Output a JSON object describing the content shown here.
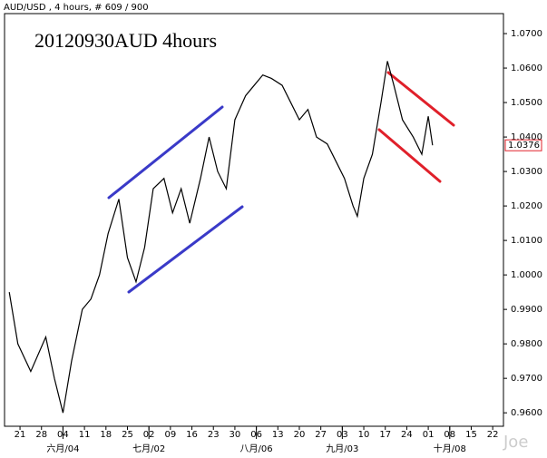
{
  "chart_data": {
    "type": "line",
    "header": "AUD/USD , 4 hours, # 609 / 900",
    "title": "20120930AUD 4hours",
    "watermark": "Joe",
    "color": "#000000",
    "x": [
      -0.5,
      -0.1,
      0.5,
      1.2,
      1.6,
      2.0,
      2.4,
      2.9,
      3.3,
      3.7,
      4.1,
      4.6,
      5.0,
      5.4,
      5.8,
      6.2,
      6.7,
      7.1,
      7.5,
      7.9,
      8.4,
      8.8,
      9.2,
      9.6,
      10.0,
      10.5,
      10.9,
      11.3,
      11.7,
      12.2,
      12.6,
      13.0,
      13.4,
      13.8,
      14.3,
      14.7,
      15.1,
      15.5,
      15.7,
      16.0,
      16.4,
      16.8,
      17.1,
      17.4,
      17.8,
      18.3,
      18.7,
      19.0,
      19.2
    ],
    "values": [
      0.995,
      0.98,
      0.972,
      0.982,
      0.97,
      0.96,
      0.975,
      0.99,
      0.993,
      1.0,
      1.012,
      1.022,
      1.005,
      0.998,
      1.008,
      1.025,
      1.028,
      1.018,
      1.025,
      1.015,
      1.028,
      1.04,
      1.03,
      1.025,
      1.045,
      1.052,
      1.055,
      1.058,
      1.057,
      1.055,
      1.05,
      1.045,
      1.048,
      1.04,
      1.038,
      1.033,
      1.028,
      1.02,
      1.017,
      1.028,
      1.035,
      1.05,
      1.062,
      1.055,
      1.045,
      1.04,
      1.035,
      1.046,
      1.0376
    ],
    "last_price": 1.0376,
    "xlim": [
      -0.72,
      22.5
    ],
    "ylim": [
      0.9561,
      1.0758
    ],
    "yticks": [
      {
        "value": 0.96,
        "label": "0.9600"
      },
      {
        "value": 0.97,
        "label": "0.9700"
      },
      {
        "value": 0.98,
        "label": "0.9800"
      },
      {
        "value": 0.99,
        "label": "0.9900"
      },
      {
        "value": 1.0,
        "label": "1.0000"
      },
      {
        "value": 1.01,
        "label": "1.0100"
      },
      {
        "value": 1.02,
        "label": "1.0200"
      },
      {
        "value": 1.03,
        "label": "1.0300"
      },
      {
        "value": 1.04,
        "label": "1.0400"
      },
      {
        "value": 1.05,
        "label": "1.0500"
      },
      {
        "value": 1.06,
        "label": "1.0600"
      },
      {
        "value": 1.07,
        "label": "1.0700"
      }
    ],
    "xticks": [
      {
        "value": 0,
        "label": "21"
      },
      {
        "value": 1,
        "label": "28"
      },
      {
        "value": 2,
        "label": "04"
      },
      {
        "value": 3,
        "label": "11"
      },
      {
        "value": 4,
        "label": "18"
      },
      {
        "value": 5,
        "label": "25"
      },
      {
        "value": 6,
        "label": "02"
      },
      {
        "value": 7,
        "label": "09"
      },
      {
        "value": 8,
        "label": "16"
      },
      {
        "value": 9,
        "label": "23"
      },
      {
        "value": 10,
        "label": "30"
      },
      {
        "value": 11,
        "label": "06"
      },
      {
        "value": 12,
        "label": "13"
      },
      {
        "value": 13,
        "label": "20"
      },
      {
        "value": 14,
        "label": "27"
      },
      {
        "value": 15,
        "label": "03"
      },
      {
        "value": 16,
        "label": "10"
      },
      {
        "value": 17,
        "label": "17"
      },
      {
        "value": 18,
        "label": "24"
      },
      {
        "value": 19,
        "label": "01"
      },
      {
        "value": 20,
        "label": "08"
      },
      {
        "value": 21,
        "label": "15"
      },
      {
        "value": 22,
        "label": "22"
      }
    ],
    "month_labels": [
      {
        "value": 2,
        "label": "六月/04"
      },
      {
        "value": 6,
        "label": "七月/02"
      },
      {
        "value": 11,
        "label": "八月/06"
      },
      {
        "value": 15,
        "label": "九月/03"
      },
      {
        "value": 20,
        "label": "十月/08"
      }
    ]
  }
}
